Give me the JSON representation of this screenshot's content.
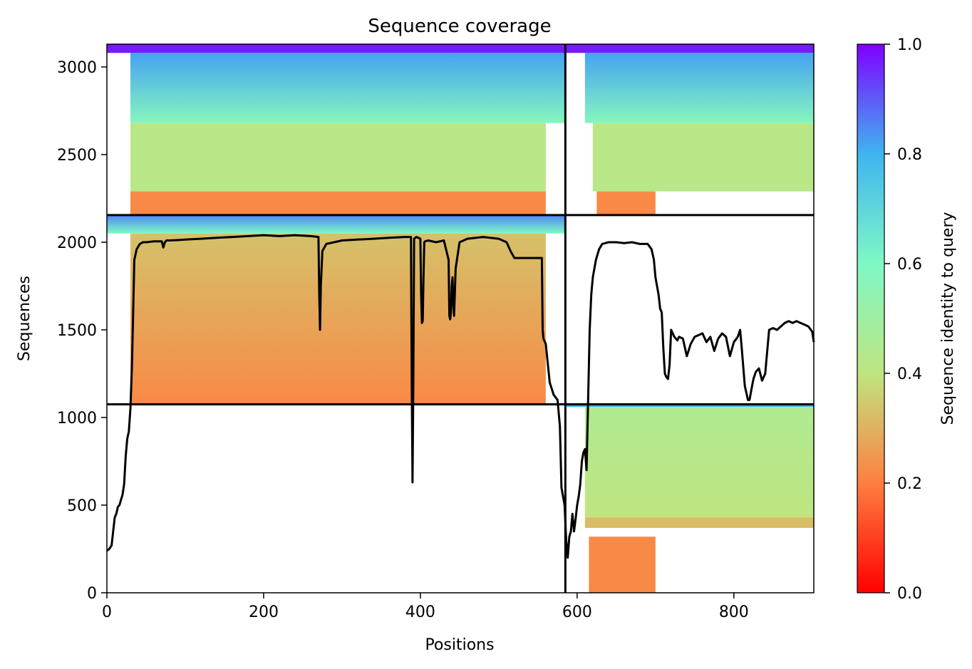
{
  "chart_data": {
    "type": "heatmap",
    "title": "Sequence coverage",
    "xlabel": "Positions",
    "ylabel": "Sequences",
    "xlim": [
      0,
      902
    ],
    "ylim": [
      0,
      3130
    ],
    "x_ticks": [
      0,
      200,
      400,
      600,
      800
    ],
    "y_ticks": [
      0,
      500,
      1000,
      1500,
      2000,
      2500,
      3000
    ],
    "chain_boundary_x": 585,
    "group_boundaries_y": [
      1075,
      2155
    ],
    "colorbar": {
      "label": "Sequence identity to query",
      "range": [
        0,
        1
      ],
      "ticks": [
        "0.0",
        "0.2",
        "0.4",
        "0.6",
        "0.8",
        "1.0"
      ],
      "colormap": "rainbow_r",
      "stops": [
        "#ff0000",
        "#ff7f40",
        "#bfe580",
        "#7ff8c5",
        "#3fb5f0",
        "#7f00ff"
      ]
    },
    "blocks": [
      {
        "x": [
          0,
          585
        ],
        "y": [
          3080,
          3130
        ],
        "identity": 0.97
      },
      {
        "x": [
          30,
          585
        ],
        "y": [
          2680,
          3080
        ],
        "identity": [
          0.58,
          0.82
        ]
      },
      {
        "x": [
          30,
          560
        ],
        "y": [
          2290,
          2680
        ],
        "identity": 0.42
      },
      {
        "x": [
          30,
          560
        ],
        "y": [
          2160,
          2290
        ],
        "identity": 0.22
      },
      {
        "x": [
          585,
          902
        ],
        "y": [
          3080,
          3130
        ],
        "identity": 0.97
      },
      {
        "x": [
          610,
          902
        ],
        "y": [
          2680,
          3080
        ],
        "identity": [
          0.58,
          0.82
        ]
      },
      {
        "x": [
          620,
          902
        ],
        "y": [
          2290,
          2680
        ],
        "identity": 0.42
      },
      {
        "x": [
          625,
          700
        ],
        "y": [
          2160,
          2290
        ],
        "identity": 0.22
      },
      {
        "x": [
          0,
          585
        ],
        "y": [
          2050,
          2155
        ],
        "identity": [
          0.6,
          0.85
        ]
      },
      {
        "x": [
          30,
          560
        ],
        "y": [
          1080,
          2050
        ],
        "identity": [
          0.22,
          0.33
        ]
      },
      {
        "x": [
          585,
          902
        ],
        "y": [
          1060,
          1075
        ],
        "identity": 0.8
      },
      {
        "x": [
          610,
          902
        ],
        "y": [
          430,
          1060
        ],
        "identity": [
          0.4,
          0.45
        ]
      },
      {
        "x": [
          610,
          902
        ],
        "y": [
          370,
          430
        ],
        "identity": 0.32
      },
      {
        "x": [
          615,
          700
        ],
        "y": [
          0,
          320
        ],
        "identity": 0.22
      }
    ],
    "coverage_line": {
      "x": [
        0,
        3,
        6,
        8,
        10,
        12,
        14,
        16,
        18,
        20,
        22,
        24,
        26,
        28,
        30,
        32,
        35,
        38,
        42,
        46,
        50,
        60,
        70,
        72,
        74,
        76,
        80,
        90,
        100,
        120,
        140,
        160,
        180,
        200,
        220,
        240,
        260,
        270,
        271,
        272,
        273,
        275,
        280,
        290,
        300,
        320,
        340,
        360,
        380,
        388,
        389,
        390,
        391,
        392,
        395,
        400,
        401,
        402,
        403,
        404,
        405,
        406,
        410,
        420,
        430,
        436,
        437,
        438,
        439,
        440,
        441,
        442,
        443,
        445,
        450,
        460,
        480,
        500,
        510,
        515,
        520,
        530,
        540,
        555,
        556,
        557,
        560,
        565,
        570,
        575,
        578,
        580,
        582,
        584,
        586,
        588,
        590,
        592,
        594,
        596,
        598,
        600,
        602,
        604,
        606,
        608,
        610,
        612,
        614,
        616,
        618,
        620,
        624,
        628,
        632,
        640,
        650,
        660,
        670,
        680,
        690,
        695,
        698,
        700,
        702,
        704,
        706,
        708,
        710,
        712,
        714,
        716,
        718,
        720,
        722,
        724,
        726,
        728,
        730,
        735,
        740,
        745,
        750,
        755,
        760,
        765,
        770,
        775,
        780,
        785,
        790,
        795,
        800,
        805,
        808,
        810,
        812,
        814,
        816,
        818,
        820,
        822,
        825,
        828,
        832,
        836,
        840,
        845,
        850,
        855,
        860,
        865,
        870,
        875,
        880,
        885,
        890,
        895,
        900,
        902
      ],
      "y": [
        240,
        250,
        270,
        350,
        430,
        450,
        490,
        500,
        530,
        560,
        620,
        780,
        880,
        920,
        1050,
        1300,
        1900,
        1960,
        1990,
        2000,
        2000,
        2005,
        2005,
        1970,
        2000,
        2010,
        2010,
        2012,
        2015,
        2020,
        2025,
        2030,
        2035,
        2040,
        2035,
        2040,
        2035,
        2030,
        1700,
        1500,
        1750,
        1950,
        1990,
        2000,
        2010,
        2015,
        2020,
        2025,
        2030,
        2030,
        1200,
        630,
        1200,
        2020,
        2030,
        2020,
        1700,
        1540,
        1550,
        1800,
        2000,
        2005,
        2010,
        2000,
        2010,
        1900,
        1580,
        1560,
        1600,
        1750,
        1800,
        1650,
        1580,
        1850,
        2000,
        2020,
        2030,
        2020,
        2000,
        1950,
        1910,
        1910,
        1910,
        1910,
        1500,
        1450,
        1420,
        1200,
        1130,
        1100,
        950,
        600,
        550,
        500,
        300,
        200,
        320,
        350,
        450,
        350,
        420,
        500,
        550,
        620,
        750,
        800,
        820,
        700,
        1100,
        1500,
        1700,
        1800,
        1900,
        1960,
        1990,
        2000,
        2000,
        1995,
        2000,
        1990,
        1990,
        1960,
        1900,
        1800,
        1750,
        1700,
        1620,
        1600,
        1400,
        1250,
        1230,
        1220,
        1300,
        1500,
        1480,
        1460,
        1450,
        1440,
        1460,
        1450,
        1350,
        1420,
        1460,
        1470,
        1480,
        1430,
        1460,
        1380,
        1450,
        1480,
        1460,
        1350,
        1430,
        1460,
        1500,
        1400,
        1290,
        1180,
        1140,
        1100,
        1100,
        1150,
        1220,
        1260,
        1280,
        1210,
        1250,
        1500,
        1510,
        1500,
        1520,
        1540,
        1550,
        1540,
        1550,
        1540,
        1530,
        1520,
        1490,
        1430
      ]
    }
  }
}
